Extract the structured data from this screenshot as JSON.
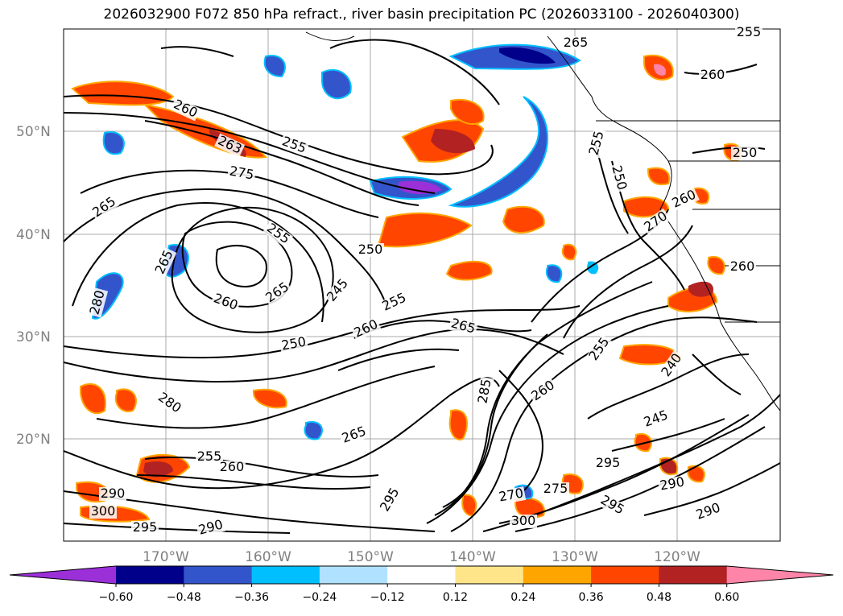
{
  "title": "2026032900 F072 850 hPa refract., river basin precipitation PC (2026033100 - 2026040300)",
  "map": {
    "lat_labels": [
      "50°N",
      "40°N",
      "30°N",
      "20°N"
    ],
    "lon_labels": [
      "170°W",
      "160°W",
      "150°W",
      "140°W",
      "130°W",
      "120°W"
    ],
    "contour_labels": [
      "260",
      "263",
      "255",
      "275",
      "265",
      "255",
      "250",
      "245",
      "255",
      "265",
      "260",
      "265",
      "250",
      "260",
      "280",
      "280",
      "265",
      "265",
      "255",
      "260",
      "290",
      "300",
      "295",
      "290",
      "295",
      "300",
      "295",
      "270",
      "275",
      "290",
      "295",
      "290",
      "245",
      "240",
      "260",
      "255",
      "250",
      "270",
      "260",
      "285",
      "255",
      "265",
      "255",
      "260",
      "250",
      "260"
    ]
  },
  "colorbar": {
    "ticks": [
      "−0.60",
      "−0.48",
      "−0.36",
      "−0.24",
      "−0.12",
      "0.12",
      "0.24",
      "0.36",
      "0.48",
      "0.60"
    ],
    "colors": [
      "#9b30d9",
      "#00008b",
      "#3355cc",
      "#00bfff",
      "#b0e2ff",
      "#ffffff",
      "#ffe58a",
      "#ffa500",
      "#ff4500",
      "#b22222",
      "#ff85a8"
    ],
    "extend": "both"
  }
}
